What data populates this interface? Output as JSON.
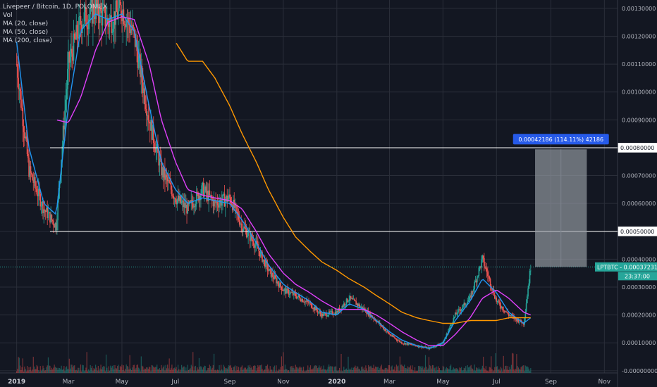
{
  "header": {
    "symbol_line": "Livepeer / Bitcoin, 1D, POLONIEX",
    "indicators": [
      "Vol",
      "MA (20, close)",
      "MA (50, close)",
      "MA (200, close)"
    ]
  },
  "colors": {
    "background": "#131722",
    "grid": "#2a2e39",
    "candle_up": "#26a69a",
    "candle_down": "#ef5350",
    "ma20": "#2196f3",
    "ma50": "#e040fb",
    "ma200": "#ff9800",
    "hline": "#ffffff",
    "range_box": "#9aa0a8",
    "range_label_bg": "#2962ff",
    "price_tag_bg": "#26a69a"
  },
  "measure": {
    "label": "0.00042186 (114.11%) 42186"
  },
  "price_tags": {
    "symbol_label": "LPTBTC - 0.00037231",
    "countdown": "23:37:00",
    "hline_upper": "0.00080000",
    "hline_lower": "0.00050000"
  },
  "chart_data": {
    "type": "candlestick",
    "title": "Livepeer / Bitcoin, 1D, POLONIEX",
    "y_axis_ticks": [
      "0.00130000",
      "0.00120000",
      "0.00110000",
      "0.00100000",
      "0.00090000",
      "0.00080000",
      "0.00070000",
      "0.00060000",
      "0.00050000",
      "0.00040000",
      "0.00030000",
      "0.00020000",
      "0.00010000",
      "-0.00000000"
    ],
    "x_axis_ticks": [
      "2019",
      "Mar",
      "May",
      "Jul",
      "Sep",
      "Nov",
      "2020",
      "Mar",
      "May",
      "Jul",
      "Sep",
      "Nov"
    ],
    "ylim": [
      -8e-06,
      0.00133
    ],
    "last_price": 0.00037231,
    "horizontal_lines": [
      0.0008,
      0.0005
    ],
    "measure_range": {
      "from": 0.00037231,
      "to": 0.00079417,
      "change": 0.00042186,
      "percent": 114.11
    },
    "series": [
      {
        "name": "LPTBTC",
        "x": [
          "2019-01-01",
          "2019-01-15",
          "2019-02-01",
          "2019-02-15",
          "2019-03-01",
          "2019-03-15",
          "2019-04-01",
          "2019-04-15",
          "2019-05-01",
          "2019-05-15",
          "2019-06-01",
          "2019-06-15",
          "2019-07-01",
          "2019-07-15",
          "2019-08-01",
          "2019-08-15",
          "2019-09-01",
          "2019-09-15",
          "2019-10-01",
          "2019-10-15",
          "2019-11-01",
          "2019-11-15",
          "2019-12-01",
          "2019-12-15",
          "2020-01-01",
          "2020-01-15",
          "2020-02-01",
          "2020-02-15",
          "2020-03-01",
          "2020-03-15",
          "2020-04-01",
          "2020-04-15",
          "2020-05-01",
          "2020-05-15",
          "2020-06-01",
          "2020-06-15",
          "2020-07-01",
          "2020-07-15",
          "2020-08-01",
          "2020-08-09"
        ],
        "close": [
          0.0011,
          0.00072,
          0.00058,
          0.00052,
          0.0011,
          0.00125,
          0.0013,
          0.00125,
          0.0013,
          0.0012,
          0.0009,
          0.00072,
          0.00062,
          0.00058,
          0.00065,
          0.0006,
          0.00062,
          0.00052,
          0.00045,
          0.00036,
          0.00029,
          0.00027,
          0.00024,
          0.0002,
          0.00021,
          0.00026,
          0.00022,
          0.00018,
          0.00013,
          0.0001,
          9e-05,
          8e-05,
          0.0001,
          0.0002,
          0.00026,
          0.0004,
          0.00025,
          0.0002,
          0.00017,
          0.00037231
        ]
      },
      {
        "name": "MA (20, close)",
        "values": [
          0.00118,
          0.0008,
          0.0006,
          0.00056,
          0.00095,
          0.00122,
          0.00128,
          0.00126,
          0.00128,
          0.00122,
          0.00095,
          0.00075,
          0.00065,
          0.0006,
          0.00062,
          0.00061,
          0.0006,
          0.00054,
          0.00046,
          0.00038,
          0.00031,
          0.00028,
          0.00025,
          0.00021,
          0.0002,
          0.00024,
          0.00022,
          0.00018,
          0.00014,
          0.00011,
          9e-05,
          8e-05,
          0.0001,
          0.00018,
          0.00025,
          0.00033,
          0.00028,
          0.00021,
          0.00017,
          0.00019
        ]
      },
      {
        "name": "MA (50, close)",
        "values": [
          null,
          null,
          null,
          0.0009,
          0.00089,
          0.00098,
          0.00115,
          0.00125,
          0.00127,
          0.00126,
          0.0011,
          0.0009,
          0.00075,
          0.00065,
          0.00063,
          0.00062,
          0.00061,
          0.00058,
          0.0005,
          0.00042,
          0.00035,
          0.00031,
          0.00028,
          0.00025,
          0.00022,
          0.00022,
          0.00022,
          0.0002,
          0.00017,
          0.00014,
          0.00011,
          9e-05,
          9e-05,
          0.00013,
          0.00019,
          0.00026,
          0.00029,
          0.00026,
          0.00021,
          0.0002
        ]
      },
      {
        "name": "MA (200, close)",
        "values": [
          null,
          null,
          null,
          null,
          null,
          null,
          null,
          null,
          null,
          null,
          null,
          null,
          0.00118,
          0.00111,
          0.00111,
          0.00105,
          0.00095,
          0.00085,
          0.00075,
          0.00065,
          0.00055,
          0.00048,
          0.00043,
          0.00039,
          0.00036,
          0.00033,
          0.0003,
          0.00027,
          0.00024,
          0.00021,
          0.00019,
          0.00018,
          0.00017,
          0.00017,
          0.00018,
          0.00018,
          0.00018,
          0.00019,
          0.00019,
          0.00019
        ]
      }
    ]
  }
}
